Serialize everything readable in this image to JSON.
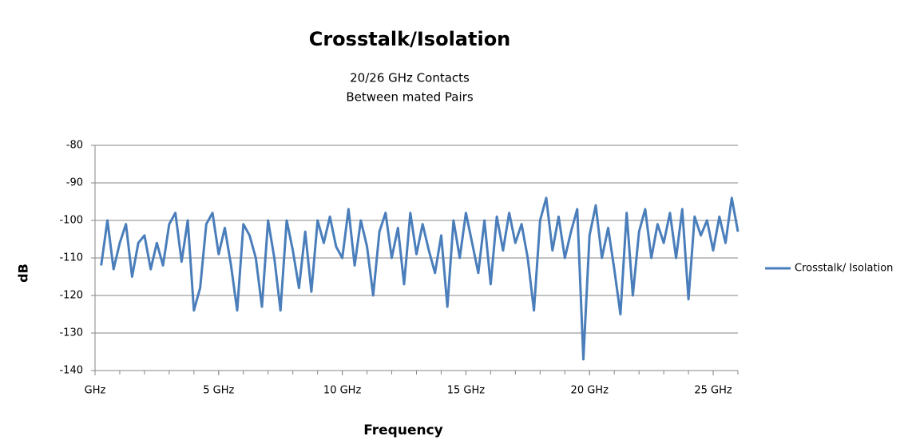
{
  "chart_data": {
    "type": "line",
    "title": "Crosstalk/Isolation",
    "subtitle": [
      "20/26 GHz Contacts",
      "Between mated Pairs"
    ],
    "x_label": "Frequency",
    "y_label": "dB",
    "x": [
      0.25,
      0.5,
      0.75,
      1,
      1.25,
      1.5,
      1.75,
      2,
      2.25,
      2.5,
      2.75,
      3,
      3.25,
      3.5,
      3.75,
      4,
      4.25,
      4.5,
      4.75,
      5,
      5.25,
      5.5,
      5.75,
      6,
      6.25,
      6.5,
      6.75,
      7,
      7.25,
      7.5,
      7.75,
      8,
      8.25,
      8.5,
      8.75,
      9,
      9.25,
      9.5,
      9.75,
      10,
      10.25,
      10.5,
      10.75,
      11,
      11.25,
      11.5,
      11.75,
      12,
      12.25,
      12.5,
      12.75,
      13,
      13.25,
      13.5,
      13.75,
      14,
      14.25,
      14.5,
      14.75,
      15,
      15.25,
      15.5,
      15.75,
      16,
      16.25,
      16.5,
      16.75,
      17,
      17.25,
      17.5,
      17.75,
      18,
      18.25,
      18.5,
      18.75,
      19,
      19.25,
      19.5,
      19.75,
      20,
      20.25,
      20.5,
      20.75,
      21,
      21.25,
      21.5,
      21.75,
      22,
      22.25,
      22.5,
      22.75,
      23,
      23.25,
      23.5,
      23.75,
      24,
      24.25,
      24.5,
      24.75,
      25,
      25.25,
      25.5,
      25.75,
      26
    ],
    "series": [
      {
        "name": "Crosstalk/ Isolation",
        "color": "#4a7ebb",
        "values": [
          -112,
          -100,
          -113,
          -106,
          -101,
          -115,
          -106,
          -104,
          -113,
          -106,
          -112,
          -101,
          -98,
          -111,
          -100,
          -124,
          -118,
          -101,
          -98,
          -109,
          -102,
          -112,
          -124,
          -101,
          -104,
          -110,
          -123,
          -100,
          -110,
          -124,
          -100,
          -108,
          -118,
          -103,
          -119,
          -100,
          -106,
          -99,
          -107,
          -110,
          -97,
          -112,
          -100,
          -107,
          -120,
          -103,
          -98,
          -110,
          -102,
          -117,
          -98,
          -109,
          -101,
          -108,
          -114,
          -104,
          -123,
          -100,
          -110,
          -98,
          -106,
          -114,
          -100,
          -117,
          -99,
          -108,
          -98,
          -106,
          -101,
          -110,
          -124,
          -100,
          -94,
          -108,
          -99,
          -110,
          -103,
          -97,
          -137,
          -104,
          -96,
          -110,
          -102,
          -113,
          -125,
          -98,
          -120,
          -103,
          -97,
          -110,
          -101,
          -106,
          -98,
          -110,
          -97,
          -121,
          -99,
          -104,
          -100,
          -108,
          -99,
          -106,
          -94,
          -103
        ]
      }
    ],
    "xlim": [
      0,
      26
    ],
    "xticks": [
      {
        "value": 0,
        "label": "GHz"
      },
      {
        "value": 5,
        "label": "5 GHz"
      },
      {
        "value": 10,
        "label": "10 GHz"
      },
      {
        "value": 15,
        "label": "15 GHz"
      },
      {
        "value": 20,
        "label": "20 GHz"
      },
      {
        "value": 25,
        "label": "25 GHz"
      }
    ],
    "xminorticks": [
      0,
      1,
      2,
      3,
      4,
      5,
      6,
      7,
      8,
      9,
      10,
      11,
      12,
      13,
      14,
      15,
      16,
      17,
      18,
      19,
      20,
      21,
      22,
      23,
      24,
      25,
      26
    ],
    "ylim": [
      -140,
      -80
    ],
    "yticks": [
      -140,
      -130,
      -120,
      -110,
      -100,
      -90,
      -80
    ],
    "grid": true,
    "legend": "right"
  }
}
